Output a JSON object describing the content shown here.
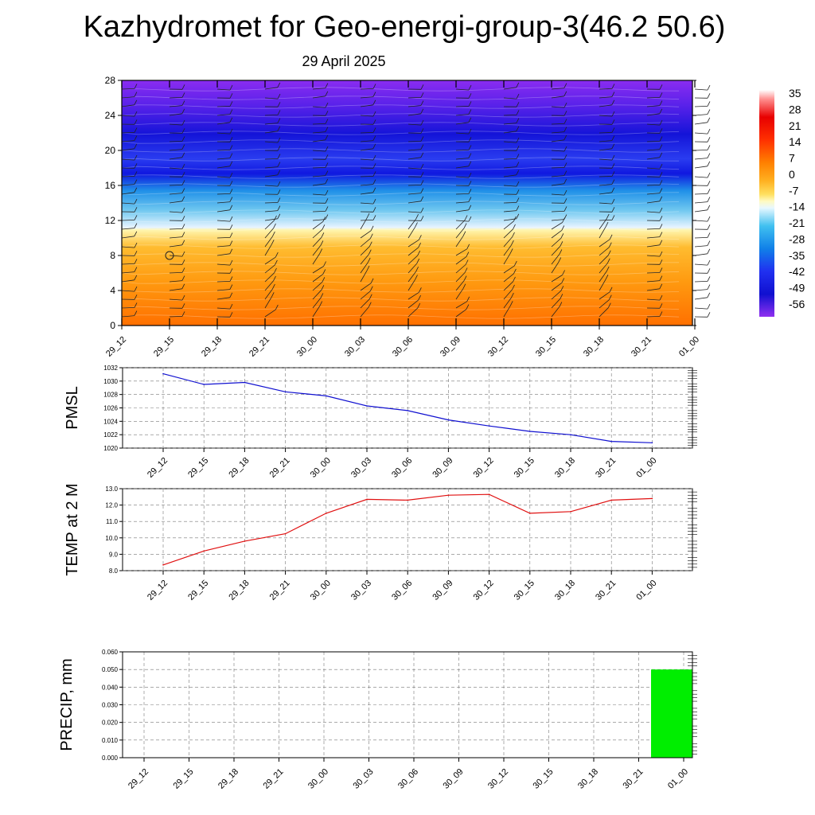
{
  "title": "Kazhydromet for Geo-energi-group-3(46.2 50.6)",
  "subtitle": "29 April 2025",
  "chart_data": [
    {
      "type": "heatmap",
      "name": "vertical-profile",
      "x_categories": [
        "29_12",
        "29_15",
        "29_18",
        "29_21",
        "30_00",
        "30_03",
        "30_06",
        "30_09",
        "30_12",
        "30_15",
        "30_18",
        "30_21",
        "01_00"
      ],
      "y_ticks": [
        0,
        4,
        8,
        12,
        16,
        20,
        24,
        28
      ],
      "ylim": [
        0,
        28
      ],
      "colorbar_labels": [
        "35",
        "28",
        "21",
        "14",
        "7",
        "0",
        "-7",
        "-14",
        "-21",
        "-28",
        "-35",
        "-42",
        "-49",
        "-56"
      ],
      "colorbar_range": [
        -60,
        39
      ],
      "colors": {
        "bottom": "#ff7d00",
        "middle": "#ffb020",
        "freezing": "#fff8a0",
        "cold": "#30b0f0",
        "very_cold": "#1010e0",
        "top": "#8a2cf0"
      }
    },
    {
      "type": "line",
      "name": "pmsl",
      "ylabel": "PMSL",
      "x": [
        "29_12",
        "29_15",
        "29_18",
        "29_21",
        "30_00",
        "30_03",
        "30_06",
        "30_09",
        "30_12",
        "30_15",
        "30_18",
        "30_21",
        "01_00"
      ],
      "y_ticks": [
        "1032",
        "1030",
        "1028",
        "1026",
        "1024",
        "1022",
        "1020"
      ],
      "ylim": [
        1020,
        1032
      ],
      "series": [
        {
          "values": [
            1031.1,
            1029.5,
            1029.8,
            1028.4,
            1027.8,
            1026.3,
            1025.6,
            1024.2,
            1023.3,
            1022.5,
            1022.0,
            1021.0,
            1020.8
          ],
          "color": "#1010d0"
        }
      ]
    },
    {
      "type": "line",
      "name": "temp",
      "ylabel": "TEMP at 2 M",
      "x": [
        "29_12",
        "29_15",
        "29_18",
        "29_21",
        "30_00",
        "30_03",
        "30_06",
        "30_09",
        "30_12",
        "30_15",
        "30_18",
        "30_21",
        "01_00"
      ],
      "y_ticks": [
        "13.0",
        "12.0",
        "11.0",
        "10.0",
        "9.0",
        "8.0"
      ],
      "ylim": [
        8,
        13
      ],
      "series": [
        {
          "values": [
            8.35,
            9.2,
            9.8,
            10.25,
            11.5,
            12.35,
            12.3,
            12.6,
            12.65,
            11.5,
            11.6,
            12.3,
            12.4
          ],
          "color": "#e01010"
        }
      ]
    },
    {
      "type": "bar",
      "name": "precip",
      "ylabel": "PRECIP, mm",
      "categories": [
        "29_12",
        "29_15",
        "29_18",
        "29_21",
        "30_00",
        "30_03",
        "30_06",
        "30_09",
        "30_12",
        "30_15",
        "30_18",
        "30_21",
        "01_00"
      ],
      "y_ticks": [
        "0.060",
        "0.050",
        "0.040",
        "0.030",
        "0.020",
        "0.010",
        "0.000"
      ],
      "ylim": [
        0,
        0.06
      ],
      "values": [
        0,
        0,
        0,
        0,
        0,
        0,
        0,
        0,
        0,
        0,
        0,
        0,
        0.05
      ],
      "color": "#00ee00"
    }
  ]
}
